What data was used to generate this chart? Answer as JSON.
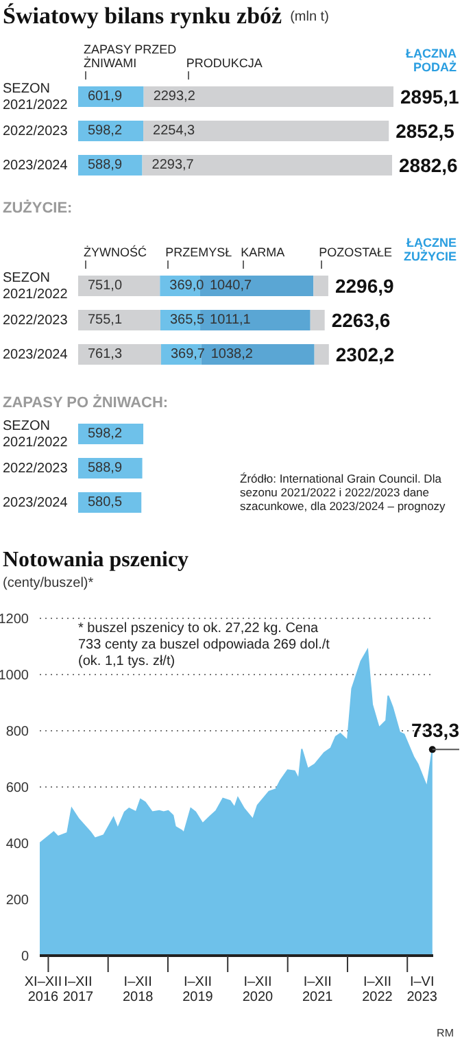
{
  "chart_data": [
    {
      "type": "bar",
      "title": "Światowy bilans rynku zbóż",
      "subtitle": "(mln t)",
      "orientation": "horizontal",
      "stacked": true,
      "legend": "top",
      "tick_labels": "y",
      "categories": [
        "SEZON 2021/2022",
        "2022/2023",
        "2023/2024"
      ],
      "series": [
        {
          "name": "ZAPASY PRZED ŻNIWAMI",
          "color": "#6ec1ea",
          "values": [
            601.9,
            598.2,
            588.9
          ],
          "value_labels": [
            "601,9",
            "598,2",
            "588,9"
          ]
        },
        {
          "name": "PRODUKCJA",
          "color": "#d0d1d3",
          "values": [
            2293.2,
            2254.3,
            2293.7
          ],
          "value_labels": [
            "2293,2",
            "2254,3",
            "2293,7"
          ]
        }
      ],
      "totals": [
        "2895,1",
        "2852,5",
        "2882,6"
      ],
      "annotations": [
        "ŁĄCZNA PODAŻ"
      ]
    },
    {
      "type": "bar",
      "title": "ZUŻYCIE:",
      "orientation": "horizontal",
      "stacked": true,
      "legend": "top",
      "tick_labels": "y",
      "categories": [
        "SEZON 2021/2022",
        "2022/2023",
        "2023/2024"
      ],
      "series": [
        {
          "name": "ŻYWNOŚĆ",
          "color": "#d0d1d3",
          "values": [
            751.0,
            755.1,
            761.3
          ],
          "value_labels": [
            "751,0",
            "755,1",
            "761,3"
          ]
        },
        {
          "name": "PRZEMYSŁ",
          "color": "#6ec1ea",
          "values": [
            369.0,
            365.5,
            369.7
          ],
          "value_labels": [
            "369,0",
            "365,5",
            "369,7"
          ]
        },
        {
          "name": "KARMA",
          "color": "#5aa6d4",
          "values": [
            1040.7,
            1011.1,
            1038.2
          ],
          "value_labels": [
            "1040,7",
            "1011,1",
            "1038,2"
          ]
        },
        {
          "name": "POZOSTAŁE",
          "color": "#d0d1d3",
          "values": [
            136.2,
            131.9,
            133.0
          ]
        }
      ],
      "totals": [
        "2296,9",
        "2263,6",
        "2302,2"
      ],
      "annotations": [
        "ŁĄCZNE ZUŻYCIE"
      ]
    },
    {
      "type": "bar",
      "title": "ZAPASY PO ŻNIWACH:",
      "orientation": "horizontal",
      "tick_labels": "y",
      "categories": [
        "SEZON 2021/2022",
        "2022/2023",
        "2023/2024"
      ],
      "values": [
        598.2,
        588.9,
        580.5
      ],
      "color": "#6ec1ea",
      "value_labels": [
        "598,2",
        "588,9",
        "580,5"
      ],
      "annotations": [
        "Źródło: International Grain Council. Dla sezonu 2021/2022 i 2022/2023 dane szacunkowe, dla 2023/2024 – prognozy"
      ]
    },
    {
      "type": "area",
      "title": "Notowania pszenicy",
      "subtitle": "(centy/buszel)*",
      "color": "#6ec1ea",
      "grid": "y",
      "xlim": [
        "2016-11-10",
        "2023-06-08"
      ],
      "ylim": [
        0,
        1200
      ],
      "yticks": [
        0,
        200,
        400,
        600,
        800,
        1000,
        1200
      ],
      "xticks": [
        {
          "value": "2016-12-01",
          "label": "XI–XII 2016"
        },
        {
          "value": "2017-01-01",
          "label": null
        },
        {
          "value": "2017-07-02",
          "label": "I–XII 2017"
        },
        {
          "value": "2018-01-01",
          "label": null
        },
        {
          "value": "2018-07-02",
          "label": "I–XII 2018"
        },
        {
          "value": "2019-01-01",
          "label": null
        },
        {
          "value": "2019-07-02",
          "label": "I–XII 2019"
        },
        {
          "value": "2020-01-01",
          "label": null
        },
        {
          "value": "2020-07-02",
          "label": "I–XII 2020"
        },
        {
          "value": "2021-01-01",
          "label": null
        },
        {
          "value": "2021-07-02",
          "label": "I–XII 2021"
        },
        {
          "value": "2022-01-01",
          "label": null
        },
        {
          "value": "2022-07-02",
          "label": "I–XII 2022"
        },
        {
          "value": "2023-01-01",
          "label": null
        },
        {
          "value": "2023-04-01",
          "label": "I–VI 2023"
        }
      ],
      "x": [
        "2016-11-10",
        "2017-02-03",
        "2017-03-01",
        "2017-04-27",
        "2017-05-24",
        "2017-07-06",
        "2017-09-15",
        "2017-10-12",
        "2017-12-06",
        "2018-02-03",
        "2018-03-01",
        "2018-04-12",
        "2018-05-09",
        "2018-06-21",
        "2018-07-18",
        "2018-08-15",
        "2018-09-27",
        "2018-11-09",
        "2018-12-06",
        "2019-01-03",
        "2019-02-01",
        "2019-02-15",
        "2019-03-27",
        "2019-04-09",
        "2019-05-21",
        "2019-06-18",
        "2019-08-01",
        "2019-09-12",
        "2019-10-22",
        "2019-12-03",
        "2020-01-15",
        "2020-02-12",
        "2020-03-03",
        "2020-04-09",
        "2020-06-03",
        "2020-07-01",
        "2020-09-09",
        "2020-10-21",
        "2020-11-18",
        "2021-01-01",
        "2021-02-12",
        "2021-03-09",
        "2021-03-28",
        "2021-05-03",
        "2021-06-15",
        "2021-08-12",
        "2021-09-21",
        "2021-10-21",
        "2021-11-18",
        "2022-01-01",
        "2022-01-28",
        "2022-03-24",
        "2022-05-03",
        "2022-06-01",
        "2022-07-12",
        "2022-08-24",
        "2022-09-06",
        "2022-10-03",
        "2022-11-15",
        "2022-12-12",
        "2023-02-09",
        "2023-03-06",
        "2023-05-01",
        "2023-06-03"
      ],
      "values": [
        400,
        440,
        424,
        437,
        524,
        486,
        440,
        418,
        429,
        491,
        453,
        511,
        524,
        511,
        556,
        546,
        511,
        515,
        511,
        515,
        499,
        459,
        445,
        437,
        524,
        511,
        470,
        494,
        515,
        559,
        551,
        527,
        562,
        524,
        485,
        535,
        584,
        592,
        624,
        660,
        657,
        628,
        735,
        665,
        681,
        722,
        738,
        779,
        790,
        766,
        950,
        1047,
        1088,
        893,
        811,
        836,
        925,
        884,
        795,
        787,
        706,
        681,
        600,
        733.3
      ],
      "annotations": [
        "* buszel pszenicy to ok. 27,22 kg. Cena 733 centy za buszel odpowiada 269 dol./t (ok. 1,1 tys. zł/t)",
        {
          "text": "733,3",
          "x": "2023-06-03",
          "y": 733.3
        },
        "RM"
      ]
    }
  ]
}
